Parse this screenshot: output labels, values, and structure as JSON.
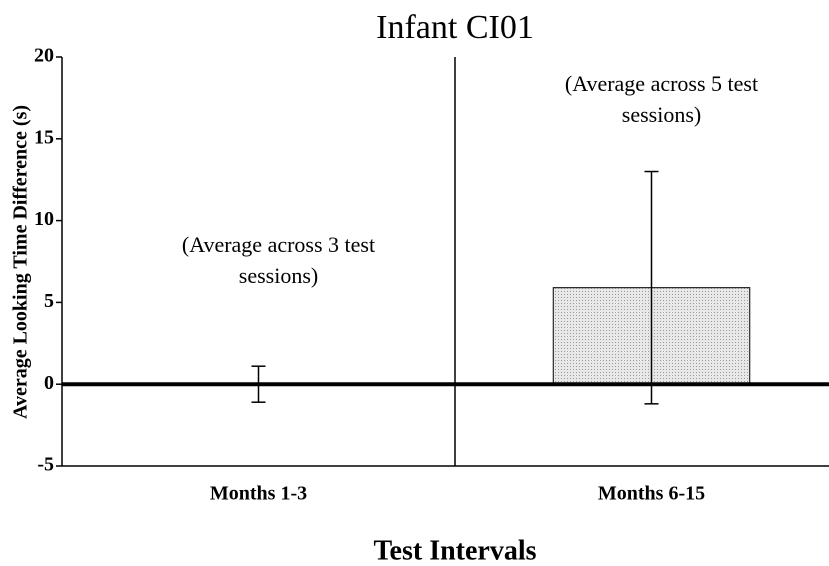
{
  "chart_data": {
    "type": "bar",
    "title": "Infant CI01",
    "x_label": "Test Intervals",
    "y_label": "Average Looking Time Difference (s)",
    "categories": [
      "Months 1-3",
      "Months 6-15"
    ],
    "values": [
      0,
      5.9
    ],
    "errors": [
      1.1,
      7.1
    ],
    "color": "#e2e2e2",
    "ylim": [
      -5,
      20
    ],
    "yticks": [
      -5,
      0,
      5,
      10,
      15,
      20
    ],
    "annotations": [
      [
        "(Average across 3 test",
        "sessions)"
      ],
      [
        "(Average across 5 test",
        "sessions)"
      ]
    ]
  }
}
